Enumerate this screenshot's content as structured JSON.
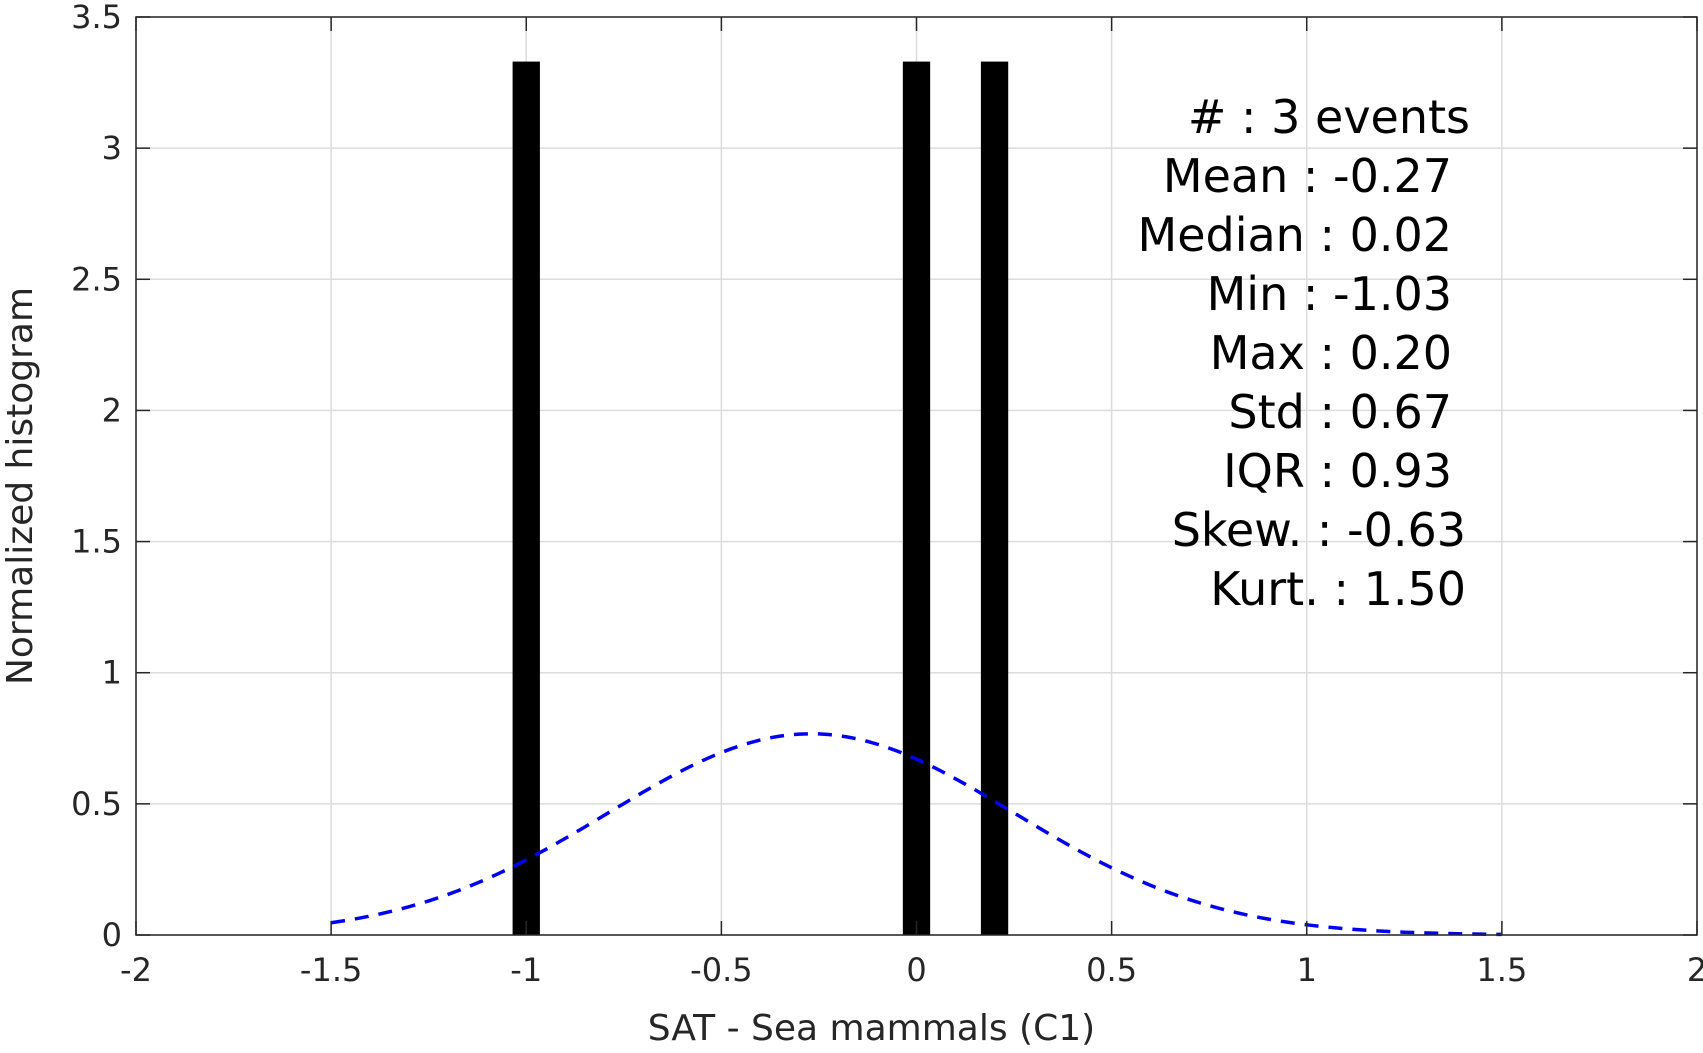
{
  "chart_data": {
    "type": "bar",
    "xlabel": "SAT - Sea mammals (C1)",
    "ylabel": "Normalized histogram",
    "xlim": [
      -2,
      2
    ],
    "ylim": [
      0,
      3.5
    ],
    "grid": true,
    "xticks": [
      -2,
      -1.5,
      -1,
      -0.5,
      0,
      0.5,
      1,
      1.5,
      2
    ],
    "xtick_labels": [
      "-2",
      "-1.5",
      "-1",
      "-0.5",
      "0",
      "0.5",
      "1",
      "1.5",
      "2"
    ],
    "yticks": [
      0,
      0.5,
      1,
      1.5,
      2,
      2.5,
      3,
      3.5
    ],
    "ytick_labels": [
      "0",
      "0.5",
      "1",
      "1.5",
      "2",
      "2.5",
      "3",
      "3.5"
    ],
    "bar_color": "#000000",
    "bar_width": 0.07,
    "bars": [
      {
        "x": -1.0,
        "value": 3.33
      },
      {
        "x": 0.0,
        "value": 3.33
      },
      {
        "x": 0.2,
        "value": 3.33
      }
    ],
    "fit_curve": {
      "type": "normal",
      "style": "dashed",
      "color": "#0000ee",
      "mean": -0.27,
      "std": 0.52,
      "x_range": [
        -1.5,
        1.5
      ]
    },
    "annotations": [
      "#  : 3 events",
      "Mean : -0.27",
      "Median : 0.02",
      "Min : -1.03",
      "Max : 0.20",
      "Std : 0.67",
      "IQR : 0.93",
      "Skew. : -0.63",
      "Kurt. : 1.50"
    ]
  }
}
